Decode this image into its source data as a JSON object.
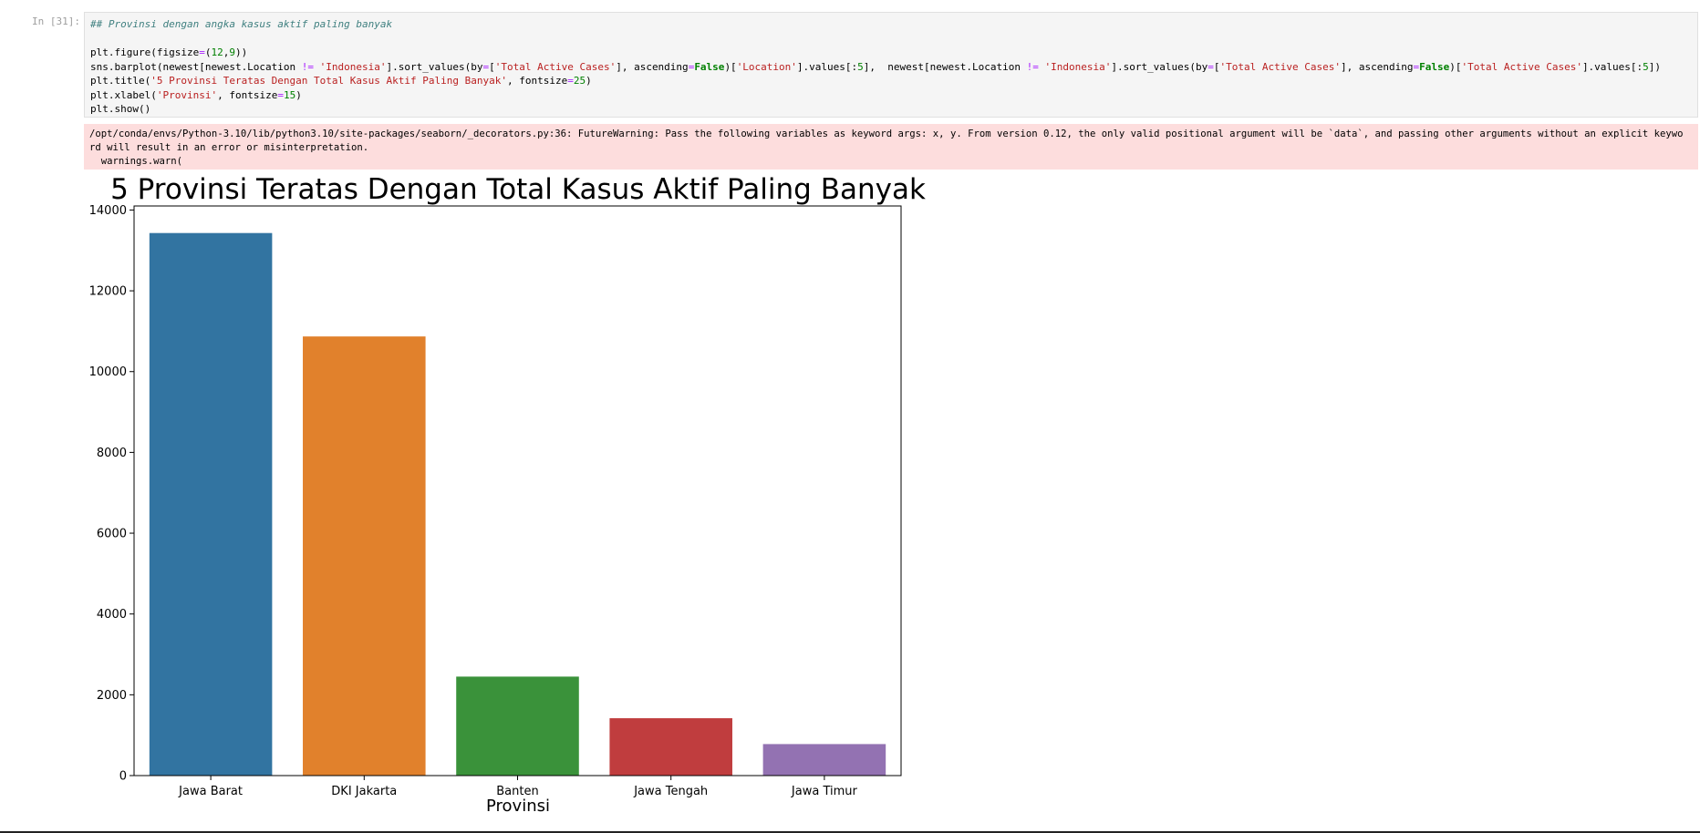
{
  "cell": {
    "prompt": "In [31]:",
    "code_lines": [
      [
        {
          "t": "## Provinsi dengan angka kasus aktif paling banyak",
          "c": "comment"
        }
      ],
      [],
      [
        {
          "t": "plt.figure(figsize"
        },
        {
          "t": "=",
          "c": "op"
        },
        {
          "t": "("
        },
        {
          "t": "12",
          "c": "num"
        },
        {
          "t": ","
        },
        {
          "t": "9",
          "c": "num"
        },
        {
          "t": "))"
        }
      ],
      [
        {
          "t": "sns.barplot(newest[newest.Location "
        },
        {
          "t": "!=",
          "c": "op"
        },
        {
          "t": " "
        },
        {
          "t": "'Indonesia'",
          "c": "str"
        },
        {
          "t": "].sort_values(by"
        },
        {
          "t": "=",
          "c": "op"
        },
        {
          "t": "["
        },
        {
          "t": "'Total Active Cases'",
          "c": "str"
        },
        {
          "t": "], ascending"
        },
        {
          "t": "=",
          "c": "op"
        },
        {
          "t": "False",
          "c": "kw"
        },
        {
          "t": ")["
        },
        {
          "t": "'Location'",
          "c": "str"
        },
        {
          "t": "].values[:"
        },
        {
          "t": "5",
          "c": "num"
        },
        {
          "t": "],  newest[newest.Location "
        },
        {
          "t": "!=",
          "c": "op"
        },
        {
          "t": " "
        },
        {
          "t": "'Indonesia'",
          "c": "str"
        },
        {
          "t": "].sort_values(by"
        },
        {
          "t": "=",
          "c": "op"
        },
        {
          "t": "["
        },
        {
          "t": "'Total Active Cases'",
          "c": "str"
        },
        {
          "t": "], ascending"
        },
        {
          "t": "=",
          "c": "op"
        },
        {
          "t": "False",
          "c": "kw"
        },
        {
          "t": ")["
        },
        {
          "t": "'Total Active Cases'",
          "c": "str"
        },
        {
          "t": "].values[:"
        },
        {
          "t": "5",
          "c": "num"
        },
        {
          "t": "])"
        }
      ],
      [
        {
          "t": "plt.title("
        },
        {
          "t": "'5 Provinsi Teratas Dengan Total Kasus Aktif Paling Banyak'",
          "c": "str"
        },
        {
          "t": ", fontsize"
        },
        {
          "t": "=",
          "c": "op"
        },
        {
          "t": "25",
          "c": "num"
        },
        {
          "t": ")"
        }
      ],
      [
        {
          "t": "plt.xlabel("
        },
        {
          "t": "'Provinsi'",
          "c": "str"
        },
        {
          "t": ", fontsize"
        },
        {
          "t": "=",
          "c": "op"
        },
        {
          "t": "15",
          "c": "num"
        },
        {
          "t": ")"
        }
      ],
      [
        {
          "t": "plt.show()"
        }
      ]
    ],
    "stderr": "/opt/conda/envs/Python-3.10/lib/python3.10/site-packages/seaborn/_decorators.py:36: FutureWarning: Pass the following variables as keyword args: x, y. From version 0.12, the only valid positional argument will be `data`, and passing other arguments without an explicit keywo\nrd will result in an error or misinterpretation.\n  warnings.warn("
  },
  "colors": {
    "cell_bg": "#f5f5f5",
    "stderr_bg": "#fddddd"
  },
  "chart_data": {
    "type": "bar",
    "title": "5 Provinsi Teratas Dengan Total Kasus Aktif Paling Banyak",
    "xlabel": "Provinsi",
    "ylabel": "",
    "categories": [
      "Jawa Barat",
      "DKI Jakarta",
      "Banten",
      "Jawa Tengah",
      "Jawa Timur"
    ],
    "values": [
      13430,
      10870,
      2450,
      1420,
      780
    ],
    "colors": [
      "#3274a1",
      "#e1812c",
      "#3a923a",
      "#c03d3e",
      "#9372b2"
    ],
    "ylim": [
      0,
      14100
    ],
    "yticks": [
      0,
      2000,
      4000,
      6000,
      8000,
      10000,
      12000,
      14000
    ],
    "grid": false,
    "legend": false
  }
}
